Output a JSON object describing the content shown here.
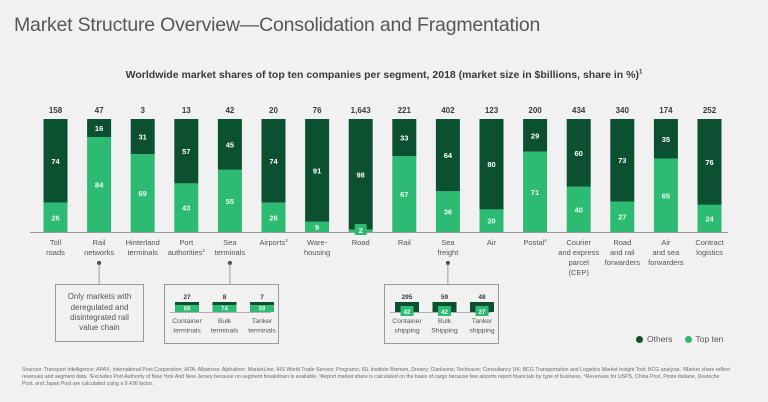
{
  "page": {
    "title": "Market Structure Overview—Consolidation and Fragmentation",
    "subtitle": "Worldwide market shares of top ten companies per segment, 2018 (market size in $billions, share in %)",
    "subtitle_sup": "1"
  },
  "colors": {
    "others": "#0b5030",
    "top_ten": "#2dba72",
    "axis": "#9a9a9a",
    "label_text": "#555555",
    "total_text": "#3a3a3a"
  },
  "chart_data": {
    "type": "bar",
    "stacked": true,
    "title": "Worldwide market shares of top ten companies per segment, 2018 (market size in $billions, share in %)",
    "xlabel": "",
    "ylabel": "",
    "ylim": [
      0,
      100
    ],
    "legend_position": "bottom-right",
    "categories": [
      {
        "label": [
          "Toll",
          "roads"
        ],
        "sup": "",
        "total": "158"
      },
      {
        "label": [
          "Rail",
          "networks"
        ],
        "sup": "",
        "total": "47"
      },
      {
        "label": [
          "Hinterland",
          "terminals"
        ],
        "sup": "",
        "total": "3"
      },
      {
        "label": [
          "Port",
          "authorities"
        ],
        "sup": "2",
        "total": "13"
      },
      {
        "label": [
          "Sea",
          "terminals"
        ],
        "sup": "",
        "total": "42"
      },
      {
        "label": [
          "Airports"
        ],
        "sup": "3",
        "total": "20"
      },
      {
        "label": [
          "Ware-",
          "housing"
        ],
        "sup": "",
        "total": "76"
      },
      {
        "label": [
          "Road"
        ],
        "sup": "",
        "total": "1,643"
      },
      {
        "label": [
          "Rail"
        ],
        "sup": "",
        "total": "221"
      },
      {
        "label": [
          "Sea",
          "freight"
        ],
        "sup": "",
        "total": "402"
      },
      {
        "label": [
          "Air"
        ],
        "sup": "",
        "total": "123"
      },
      {
        "label": [
          "Postal"
        ],
        "sup": "4",
        "total": "200"
      },
      {
        "label": [
          "Courier",
          "and express",
          "parcel",
          "(CEP)"
        ],
        "sup": "",
        "total": "434"
      },
      {
        "label": [
          "Road",
          "and rail",
          "forwarders"
        ],
        "sup": "",
        "total": "340"
      },
      {
        "label": [
          "Air",
          "and sea",
          "forwarders"
        ],
        "sup": "",
        "total": "174"
      },
      {
        "label": [
          "Contract",
          "logistics"
        ],
        "sup": "",
        "total": "252"
      }
    ],
    "series": [
      {
        "name": "Top ten",
        "values": [
          26,
          84,
          69,
          43,
          55,
          26,
          9,
          2,
          67,
          36,
          20,
          71,
          40,
          27,
          65,
          24
        ]
      },
      {
        "name": "Others",
        "values": [
          74,
          16,
          31,
          57,
          45,
          74,
          91,
          98,
          33,
          64,
          80,
          29,
          60,
          73,
          35,
          76
        ]
      }
    ],
    "sub_charts": [
      {
        "parent": "Sea terminals",
        "categories": [
          {
            "label": [
              "Container",
              "terminals"
            ],
            "total": "27",
            "top_ten": 69
          },
          {
            "label": [
              "Bulk",
              "terminals"
            ],
            "total": "8",
            "top_ten": 74
          },
          {
            "label": [
              "Tanker",
              "terminals"
            ],
            "total": "7",
            "top_ten": 59
          }
        ]
      },
      {
        "parent": "Sea freight",
        "categories": [
          {
            "label": [
              "Container",
              "shipping"
            ],
            "total": "295",
            "top_ten": 42
          },
          {
            "label": [
              "Bulk",
              "Shipping"
            ],
            "total": "59",
            "top_ten": 42
          },
          {
            "label": [
              "Tanker",
              "shipping"
            ],
            "total": "48",
            "top_ten": 27
          }
        ]
      }
    ],
    "annotation": "Only markets with deregulated and disintegrated rail value chain",
    "annotation_parent": "Rail networks"
  },
  "legend": [
    {
      "name": "Others",
      "color_key": "others"
    },
    {
      "name": "Top ten",
      "color_key": "top_ten"
    }
  ],
  "note_box": {
    "text": "Only markets with deregulated and disintegrated rail value chain"
  },
  "footnote": "Sources: Transport Intelligence; APAX; International Post Corporation; IATA; Albatross; Alphaliner; MarketLine; IHS World Trade Service; Programs; ISL Institute Bremen, Drewry; Clarksons; Technavio; Consultancy UK; BCG Transportation and Logistics Market Insight Tool; BCG analysis. ¹Market share reflect revenues and segment data. ²Excludes Port Authority of New York And New Jersey because no segment breakdown is available. ³Airport market share is calculated on the basis of cargo because few airports report financials by type of business. ⁴Revenues for USPS, China Post, Poste Italiane, Deutsche Post, and Japan Post are calculated using a 0.436 factor."
}
